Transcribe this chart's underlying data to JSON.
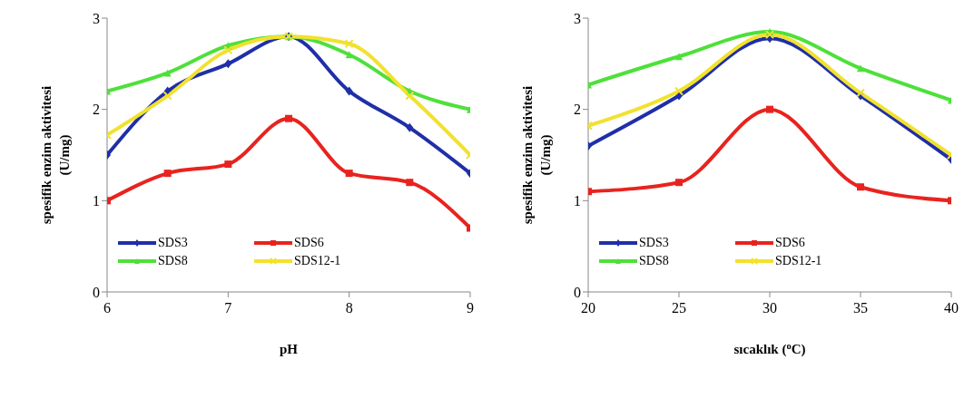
{
  "chart_data": [
    {
      "type": "line",
      "x": [
        6,
        6.5,
        7,
        7.5,
        8,
        8.5,
        9
      ],
      "xlabel": "pH",
      "ylabel": "spesifik enzim aktivitesi (U/mg)",
      "xlim": [
        6,
        9
      ],
      "xticks": [
        6,
        7,
        8,
        9
      ],
      "ylim": [
        0,
        3
      ],
      "yticks": [
        0,
        1,
        2,
        3
      ],
      "grid": false,
      "legend": "bottom",
      "series": [
        {
          "name": "SDS3",
          "color": "#1f2fa8",
          "marker": "diamond",
          "values": [
            1.5,
            2.2,
            2.5,
            2.8,
            2.2,
            1.8,
            1.3
          ]
        },
        {
          "name": "SDS6",
          "color": "#e8231f",
          "marker": "square",
          "values": [
            1.0,
            1.3,
            1.4,
            1.9,
            1.3,
            1.2,
            0.7
          ]
        },
        {
          "name": "SDS8",
          "color": "#4ee03a",
          "marker": "triangle",
          "values": [
            2.2,
            2.4,
            2.7,
            2.8,
            2.6,
            2.2,
            2.0
          ]
        },
        {
          "name": "SDS12-1",
          "color": "#f2e12e",
          "marker": "cross",
          "values": [
            1.72,
            2.15,
            2.65,
            2.8,
            2.72,
            2.15,
            1.5
          ]
        }
      ]
    },
    {
      "type": "line",
      "x": [
        20,
        25,
        30,
        35,
        40
      ],
      "xlabel": "sıcaklık ($^{o}$C)",
      "ylabel": "spesifik enzim aktivitesi (U/mg)",
      "xlim": [
        20,
        40
      ],
      "xticks": [
        20,
        25,
        30,
        35,
        40
      ],
      "ylim": [
        0,
        3
      ],
      "yticks": [
        0,
        1,
        2,
        3
      ],
      "grid": false,
      "legend": "bottom",
      "series": [
        {
          "name": "SDS3",
          "color": "#1f2fa8",
          "marker": "diamond",
          "values": [
            1.6,
            2.15,
            2.78,
            2.15,
            1.45
          ]
        },
        {
          "name": "SDS6",
          "color": "#e8231f",
          "marker": "square",
          "values": [
            1.1,
            1.2,
            2.0,
            1.15,
            1.0
          ]
        },
        {
          "name": "SDS8",
          "color": "#4ee03a",
          "marker": "triangle",
          "values": [
            2.27,
            2.58,
            2.85,
            2.45,
            2.1
          ]
        },
        {
          "name": "SDS12-1",
          "color": "#f2e12e",
          "marker": "cross",
          "values": [
            1.82,
            2.2,
            2.82,
            2.18,
            1.5
          ]
        }
      ]
    }
  ]
}
